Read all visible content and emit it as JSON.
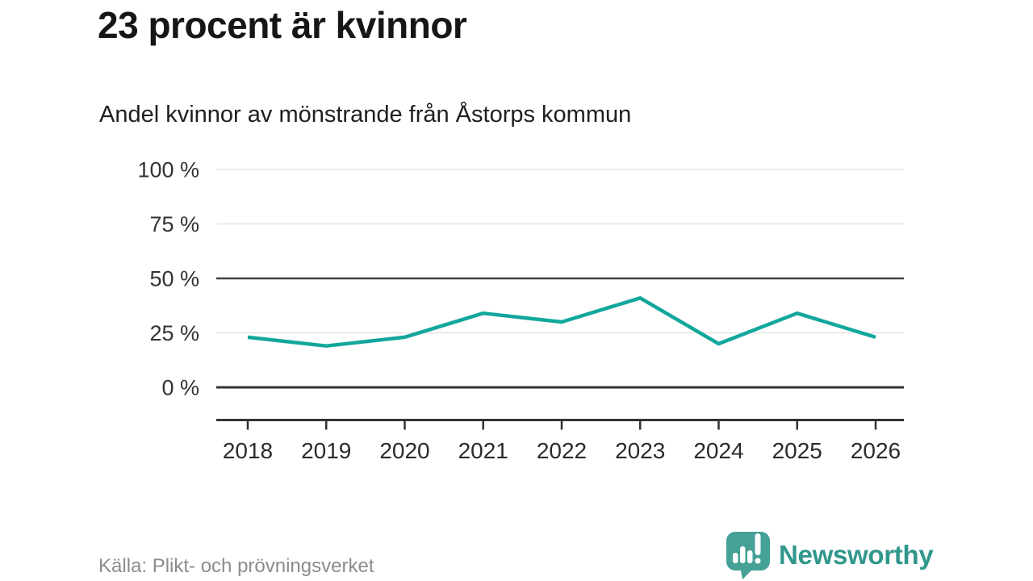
{
  "chart_data": {
    "type": "line",
    "title": "23 procent är kvinnor",
    "subtitle": "Andel kvinnor av mönstrande från Åstorps kommun",
    "x": [
      "2018",
      "2019",
      "2020",
      "2021",
      "2022",
      "2023",
      "2024",
      "2025",
      "2026"
    ],
    "series": [
      {
        "name": "Andel kvinnor av mönstrande",
        "values": [
          23,
          19,
          23,
          34,
          30,
          41,
          20,
          34,
          23
        ]
      }
    ],
    "xlabel": "",
    "ylabel": "",
    "ylim": [
      0,
      100
    ],
    "yticks": [
      0,
      25,
      50,
      75,
      100
    ],
    "ytick_labels": [
      "0 %",
      "25 %",
      "50 %",
      "75 %",
      "100 %"
    ],
    "emphasized_gridlines": [
      0,
      50
    ],
    "grid": "horizontal",
    "legend": "none",
    "line_color": "#12a79c"
  },
  "footer": {
    "source": "Källa: Plikt- och prövningsverket",
    "brand": "Newsworthy"
  },
  "colors": {
    "accent_line": "#12a79c",
    "brand_teal": "#45a096",
    "wordmark_teal": "#31978c",
    "text_dark": "#333333",
    "grid_light": "#e3e3e3",
    "grid_emphasis": "#424242",
    "axis_dark": "#333333",
    "muted_text": "#8c8c8c"
  }
}
